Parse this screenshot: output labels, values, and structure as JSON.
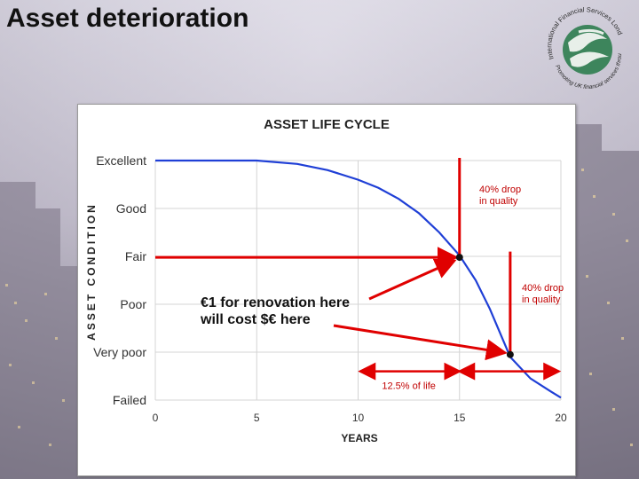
{
  "slide": {
    "title": "Asset deterioration",
    "logo": {
      "top_text": "International Financial Services London",
      "bottom_text": "Promoting UK financial services throughout the world"
    }
  },
  "chart_data": {
    "type": "line",
    "title": "ASSET LIFE CYCLE",
    "xlabel": "YEARS",
    "ylabel": "ASSET CONDITION",
    "xlim": [
      0,
      20
    ],
    "x_ticks": [
      0,
      5,
      10,
      15,
      20
    ],
    "ylim": [
      0,
      5
    ],
    "y_categories": [
      "Failed",
      "Very poor",
      "Poor",
      "Fair",
      "Good",
      "Excellent"
    ],
    "grid": true,
    "series": [
      {
        "name": "Asset condition",
        "color": "#1f3fd6",
        "x": [
          0,
          5,
          7,
          8.5,
          10,
          11,
          12,
          13,
          14,
          15,
          15.8,
          16.5,
          17.5,
          18.5,
          19.5,
          20
        ],
        "y": [
          5,
          5,
          4.93,
          4.8,
          4.6,
          4.43,
          4.2,
          3.9,
          3.5,
          3.02,
          2.5,
          1.9,
          0.9,
          0.45,
          0.18,
          0.05
        ]
      }
    ],
    "annotations": {
      "drop_label_1": "40% drop\nin quality",
      "drop_label_2": "40% drop\nin quality",
      "renovation_note": "€1 for renovation here\nwill cost $€ here",
      "life_span_label": "12.5% of life",
      "points": [
        {
          "x": 15,
          "y": 2.98
        },
        {
          "x": 17.5,
          "y": 0.95
        }
      ]
    }
  },
  "colors": {
    "arrow": "#e00000",
    "curve": "#1f3fd6",
    "grid": "#d4d4d4"
  }
}
